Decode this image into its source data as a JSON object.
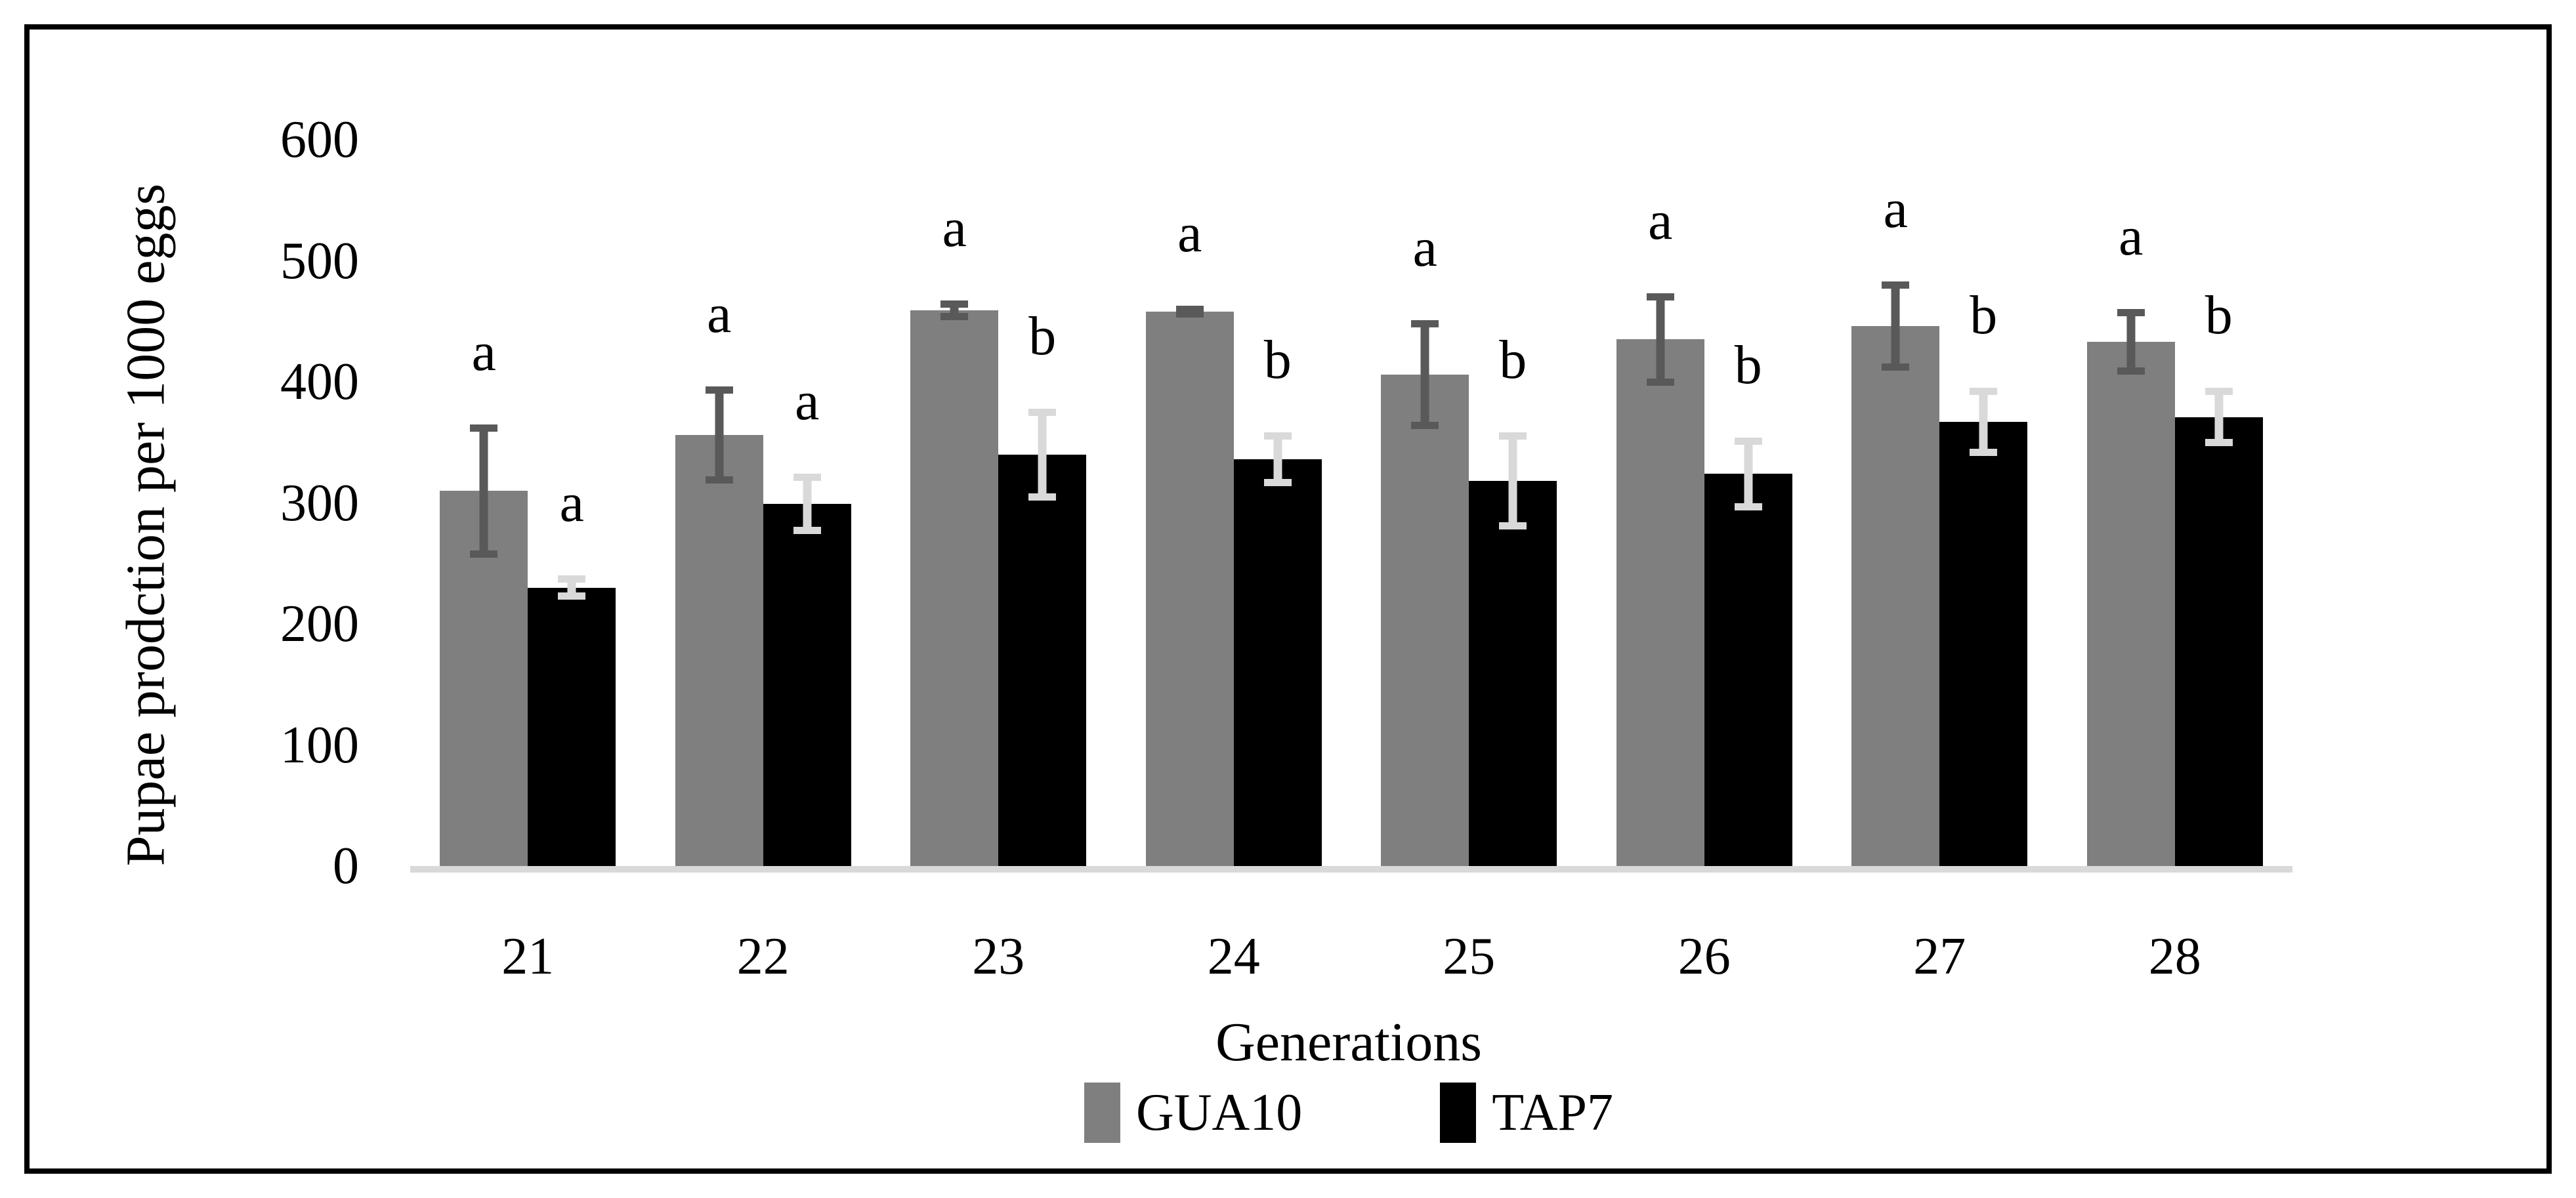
{
  "figure": {
    "background": "#FFFFFF",
    "border_color": "#000000"
  },
  "chart_data": {
    "type": "bar",
    "title": "",
    "xlabel": "Generations",
    "ylabel": "Pupae prodction per 1000 eggs",
    "categories": [
      "21",
      "22",
      "23",
      "24",
      "25",
      "26",
      "27",
      "28"
    ],
    "series": [
      {
        "name": "GUA10",
        "color": "#7F7F7F",
        "error_color": "#595959",
        "values": [
          310,
          356,
          459,
          458,
          406,
          435,
          446,
          433
        ],
        "errors": [
          55,
          40,
          8,
          5,
          45,
          38,
          37,
          27
        ],
        "letters": [
          "a",
          "a",
          "a",
          "a",
          "a",
          "a",
          "a",
          "a"
        ]
      },
      {
        "name": "TAP7",
        "color": "#000000",
        "error_color": "#D9D9D9",
        "values": [
          230,
          299,
          340,
          336,
          318,
          324,
          367,
          371
        ],
        "errors": [
          10,
          25,
          38,
          22,
          40,
          30,
          28,
          24
        ],
        "letters": [
          "a",
          "a",
          "b",
          "b",
          "b",
          "b",
          "b",
          "b"
        ]
      }
    ],
    "ylim": [
      0,
      600
    ],
    "yticks": [
      0,
      100,
      200,
      300,
      400,
      500,
      600
    ],
    "grid": false,
    "error_bars": true,
    "axis_line_color": "#D9D9D9",
    "legend_position": "bottom"
  }
}
